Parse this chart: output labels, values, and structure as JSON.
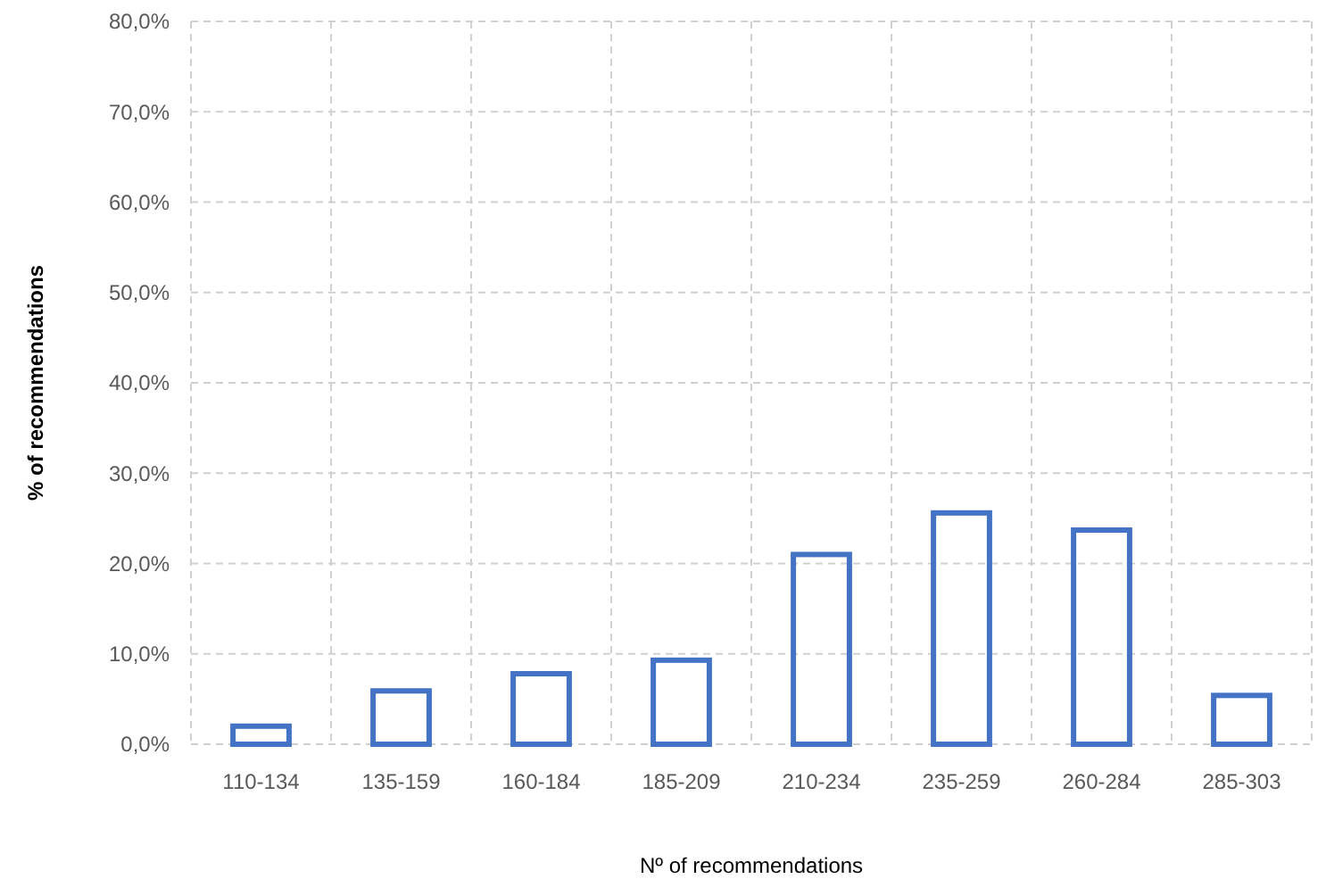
{
  "chart_data": {
    "type": "bar",
    "xlabel": "Nº of recommendations",
    "ylabel": "% of recommendations",
    "categories": [
      "110-134",
      "135-159",
      "160-184",
      "185-209",
      "210-234",
      "235-259",
      "260-284",
      "285-303"
    ],
    "values": [
      2.0,
      5.9,
      7.8,
      9.3,
      21.0,
      25.6,
      23.7,
      5.4
    ],
    "color": "#4472c4",
    "ylim": [
      0,
      80
    ],
    "yticks": [
      {
        "value": 0,
        "label": "0,0%"
      },
      {
        "value": 10,
        "label": "10,0%"
      },
      {
        "value": 20,
        "label": "20,0%"
      },
      {
        "value": 30,
        "label": "30,0%"
      },
      {
        "value": 40,
        "label": "40,0%"
      },
      {
        "value": 50,
        "label": "50,0%"
      },
      {
        "value": 60,
        "label": "60,0%"
      },
      {
        "value": 70,
        "label": "70,0%"
      },
      {
        "value": 80,
        "label": "80,0%"
      }
    ],
    "grid": true
  }
}
